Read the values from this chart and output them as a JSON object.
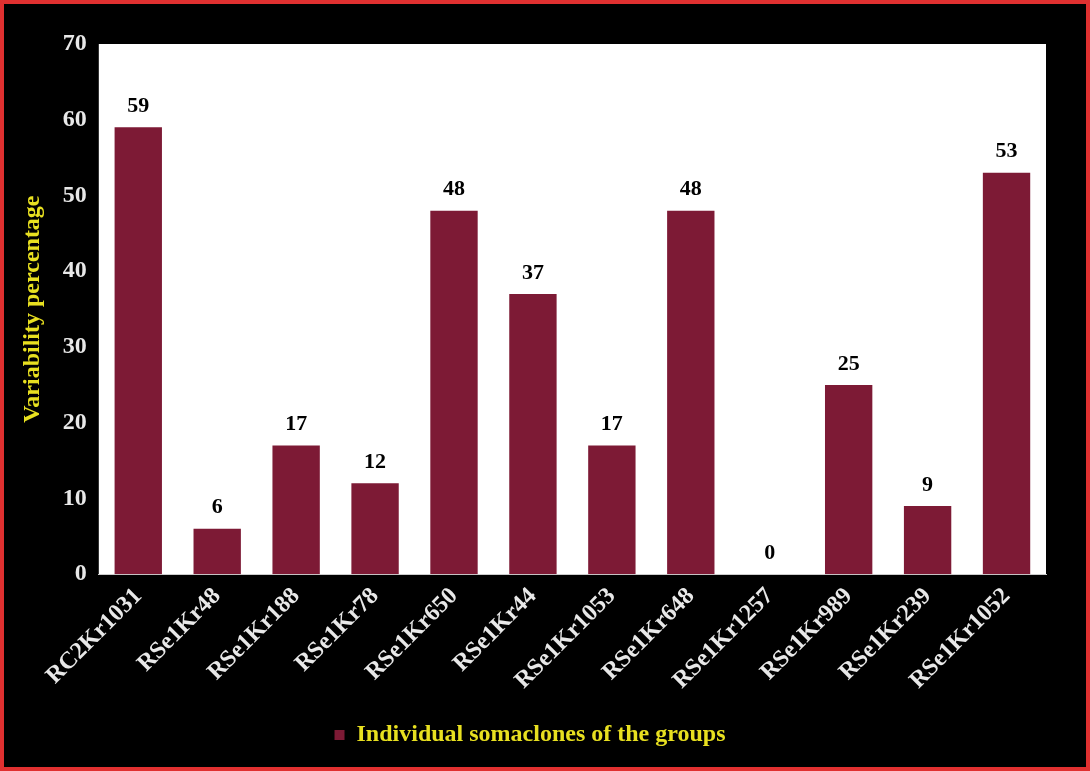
{
  "chart_data": {
    "type": "bar",
    "ylabel": "Variability percentage",
    "categories": [
      "RC2Kr1031",
      "RSe1Kr48",
      "RSe1Kr188",
      "RSe1Kr78",
      "RSe1Kr650",
      "RSe1Kr44",
      "RSe1Kr1053",
      "RSe1Kr648",
      "RSe1Kr1257",
      "RSe1Kr989",
      "RSe1Kr239",
      "RSe1Kr1052"
    ],
    "series": [
      {
        "name": "Individual somaclones of the groups",
        "color": "#7d1a35",
        "values": [
          59,
          6,
          17,
          12,
          48,
          37,
          17,
          48,
          0,
          25,
          9,
          53
        ]
      }
    ],
    "ylim": [
      0,
      70
    ],
    "yticks": [
      0,
      10,
      20,
      30,
      40,
      50,
      60,
      70
    ],
    "grid": false,
    "legend": "bottom",
    "data_labels": true
  }
}
